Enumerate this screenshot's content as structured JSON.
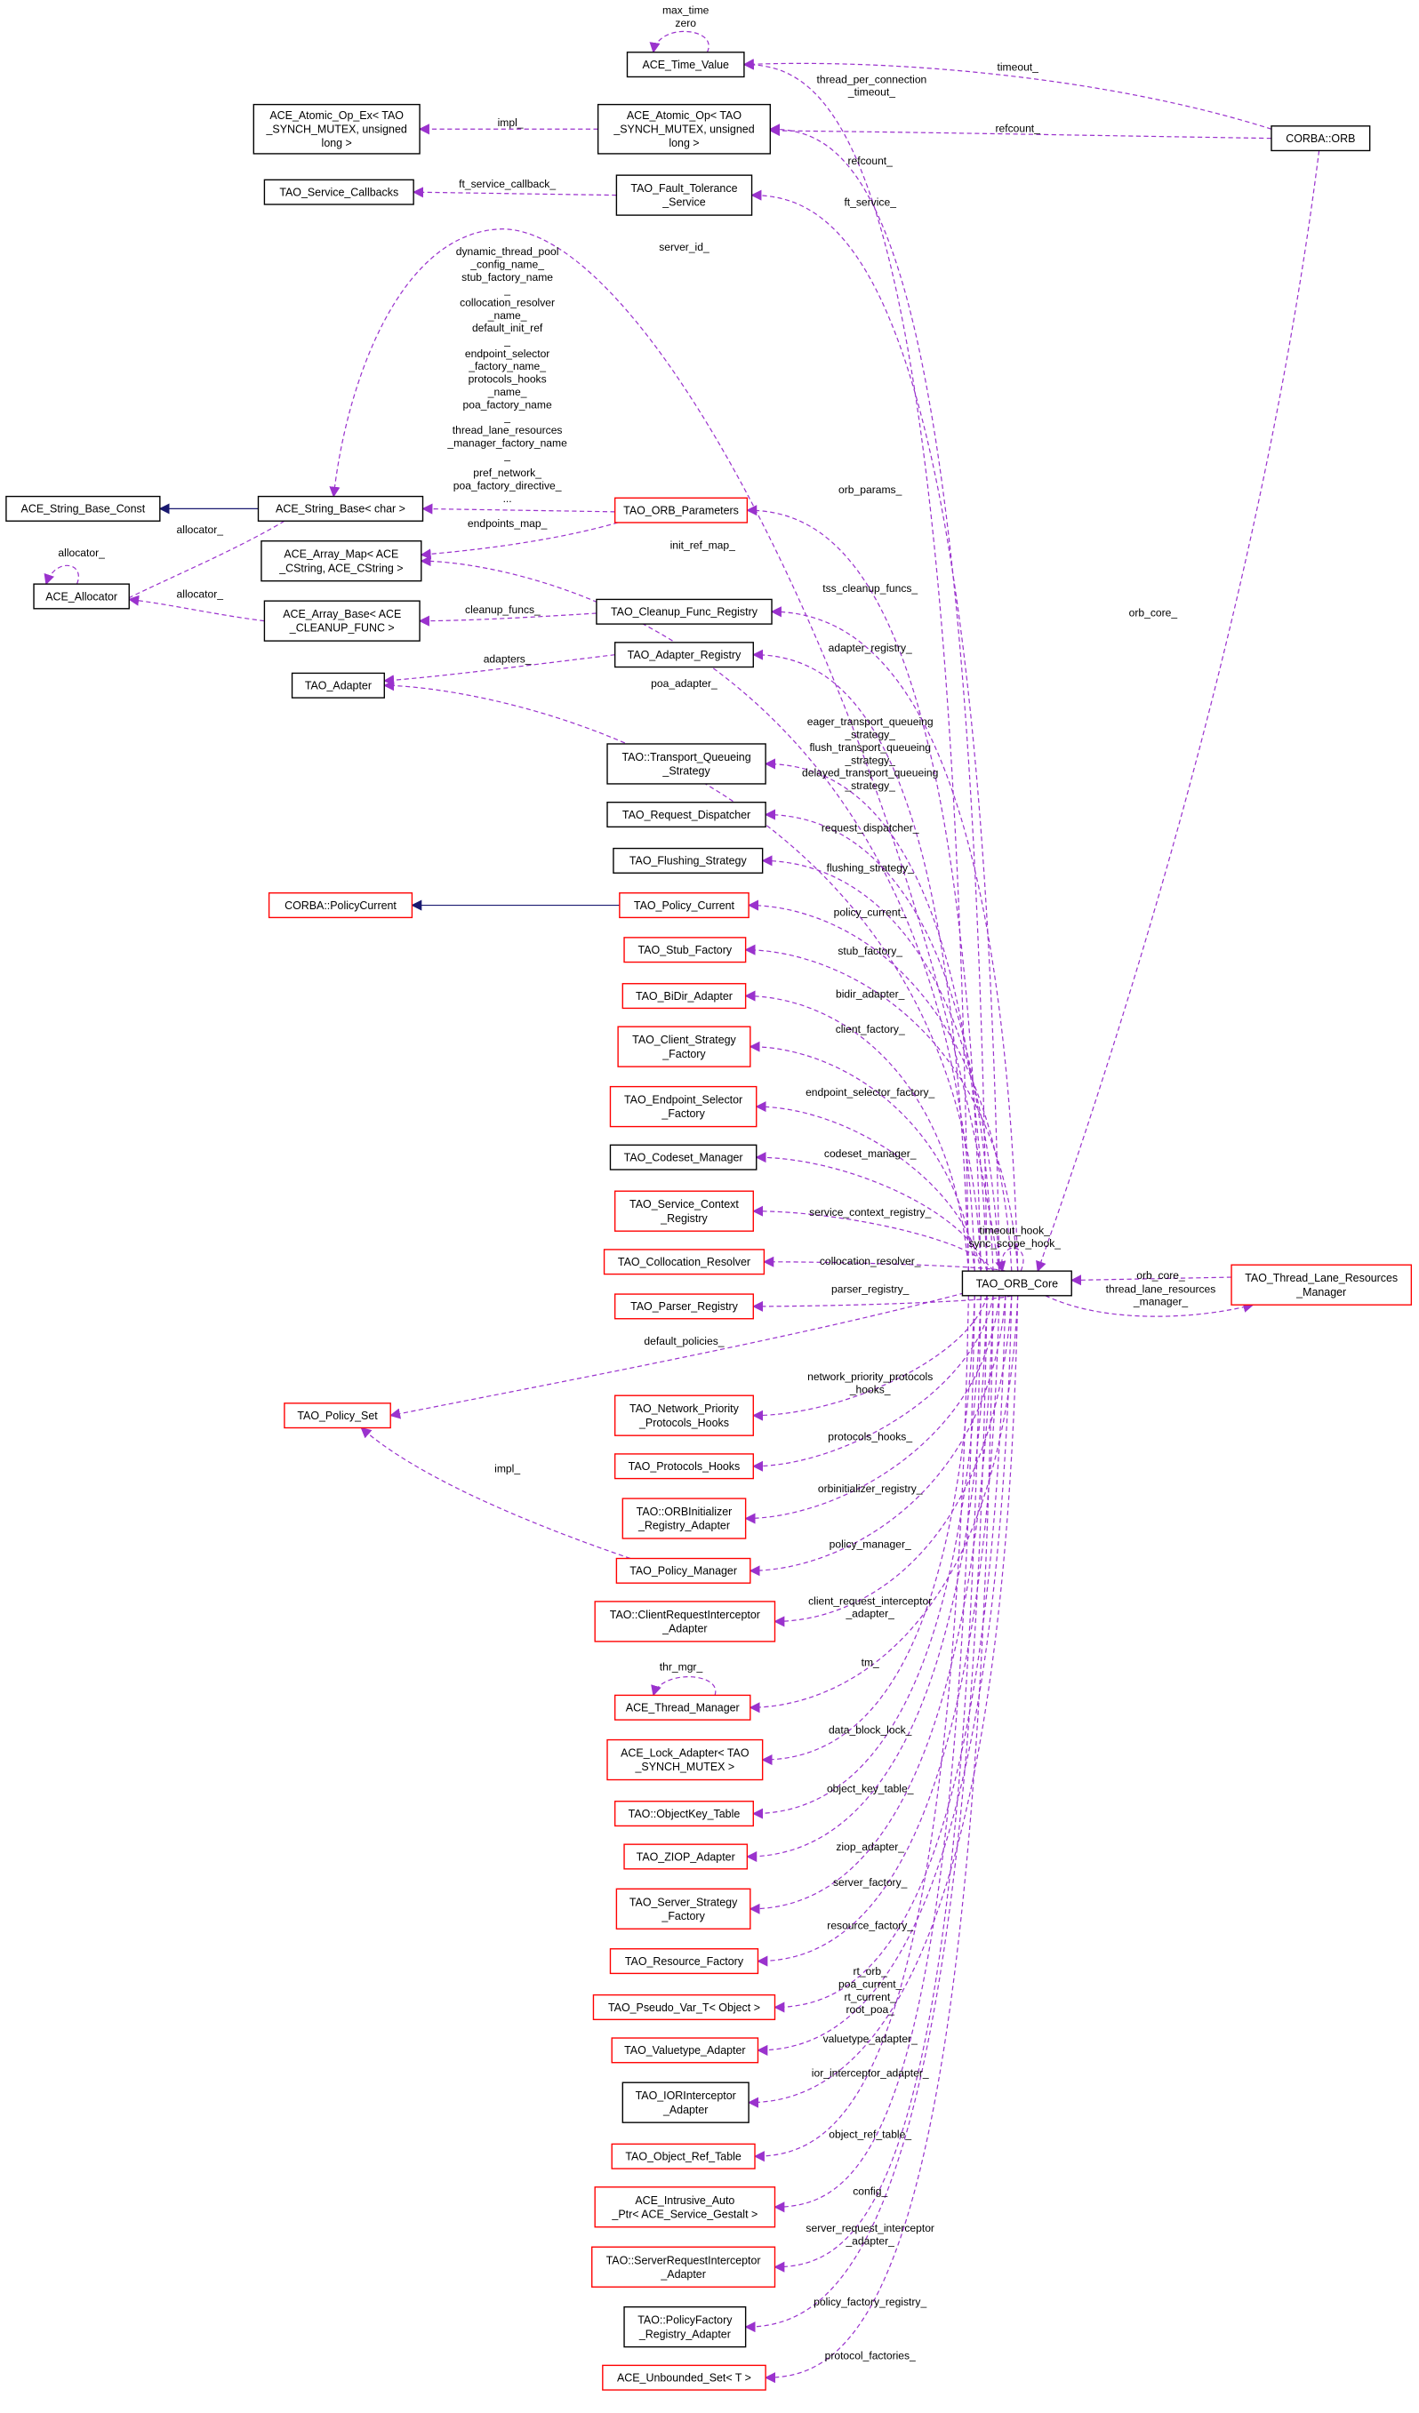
{
  "colors": {
    "member_edge": "#9a32cd",
    "inherit_edge": "#191970",
    "documented_border": "#000000",
    "undocumented_border": "#ff0000",
    "focus_fill": "#bfbfbf"
  },
  "nodes": [
    {
      "id": "tv",
      "lines": [
        "ACE_Time_Value"
      ],
      "style": "black"
    },
    {
      "id": "aoex",
      "lines": [
        "ACE_Atomic_Op_Ex< TAO",
        "_SYNCH_MUTEX, unsigned",
        "long >"
      ],
      "style": "black"
    },
    {
      "id": "ao",
      "lines": [
        "ACE_Atomic_Op< TAO",
        "_SYNCH_MUTEX, unsigned",
        "long >"
      ],
      "style": "black"
    },
    {
      "id": "orb",
      "lines": [
        "CORBA::ORB"
      ],
      "style": "focus"
    },
    {
      "id": "sc",
      "lines": [
        "TAO_Service_Callbacks"
      ],
      "style": "black"
    },
    {
      "id": "ft",
      "lines": [
        "TAO_Fault_Tolerance",
        "_Service"
      ],
      "style": "black"
    },
    {
      "id": "sbc",
      "lines": [
        "ACE_String_Base_Const"
      ],
      "style": "black"
    },
    {
      "id": "sb",
      "lines": [
        "ACE_String_Base< char >"
      ],
      "style": "black"
    },
    {
      "id": "op",
      "lines": [
        "TAO_ORB_Parameters"
      ],
      "style": "red"
    },
    {
      "id": "am",
      "lines": [
        "ACE_Array_Map< ACE",
        "_CString, ACE_CString >"
      ],
      "style": "black"
    },
    {
      "id": "al",
      "lines": [
        "ACE_Allocator"
      ],
      "style": "black"
    },
    {
      "id": "ab",
      "lines": [
        "ACE_Array_Base< ACE",
        "_CLEANUP_FUNC >"
      ],
      "style": "black"
    },
    {
      "id": "cr",
      "lines": [
        "TAO_Cleanup_Func_Registry"
      ],
      "style": "black"
    },
    {
      "id": "ar",
      "lines": [
        "TAO_Adapter_Registry"
      ],
      "style": "black"
    },
    {
      "id": "ad",
      "lines": [
        "TAO_Adapter"
      ],
      "style": "black"
    },
    {
      "id": "tq",
      "lines": [
        "TAO::Transport_Queueing",
        "_Strategy"
      ],
      "style": "black"
    },
    {
      "id": "rd",
      "lines": [
        "TAO_Request_Dispatcher"
      ],
      "style": "black"
    },
    {
      "id": "fs",
      "lines": [
        "TAO_Flushing_Strategy"
      ],
      "style": "black"
    },
    {
      "id": "cpc",
      "lines": [
        "CORBA::PolicyCurrent"
      ],
      "style": "red"
    },
    {
      "id": "pc",
      "lines": [
        "TAO_Policy_Current"
      ],
      "style": "red"
    },
    {
      "id": "sf",
      "lines": [
        "TAO_Stub_Factory"
      ],
      "style": "red"
    },
    {
      "id": "bd",
      "lines": [
        "TAO_BiDir_Adapter"
      ],
      "style": "red"
    },
    {
      "id": "cs",
      "lines": [
        "TAO_Client_Strategy",
        "_Factory"
      ],
      "style": "red"
    },
    {
      "id": "es",
      "lines": [
        "TAO_Endpoint_Selector",
        "_Factory"
      ],
      "style": "red"
    },
    {
      "id": "cm",
      "lines": [
        "TAO_Codeset_Manager"
      ],
      "style": "black"
    },
    {
      "id": "scr",
      "lines": [
        "TAO_Service_Context",
        "_Registry"
      ],
      "style": "red"
    },
    {
      "id": "col",
      "lines": [
        "TAO_Collocation_Resolver"
      ],
      "style": "red"
    },
    {
      "id": "pr",
      "lines": [
        "TAO_Parser_Registry"
      ],
      "style": "red"
    },
    {
      "id": "core",
      "lines": [
        "TAO_ORB_Core"
      ],
      "style": "black"
    },
    {
      "id": "tlr",
      "lines": [
        "TAO_Thread_Lane_Resources",
        "_Manager"
      ],
      "style": "red"
    },
    {
      "id": "ps",
      "lines": [
        "TAO_Policy_Set"
      ],
      "style": "red"
    },
    {
      "id": "np",
      "lines": [
        "TAO_Network_Priority",
        "_Protocols_Hooks"
      ],
      "style": "red"
    },
    {
      "id": "ph",
      "lines": [
        "TAO_Protocols_Hooks"
      ],
      "style": "red"
    },
    {
      "id": "oi",
      "lines": [
        "TAO::ORBInitializer",
        "_Registry_Adapter"
      ],
      "style": "red"
    },
    {
      "id": "pm",
      "lines": [
        "TAO_Policy_Manager"
      ],
      "style": "red"
    },
    {
      "id": "cri",
      "lines": [
        "TAO::ClientRequestInterceptor",
        "_Adapter"
      ],
      "style": "red"
    },
    {
      "id": "tm",
      "lines": [
        "ACE_Thread_Manager"
      ],
      "style": "red"
    },
    {
      "id": "la",
      "lines": [
        "ACE_Lock_Adapter< TAO",
        "_SYNCH_MUTEX >"
      ],
      "style": "red"
    },
    {
      "id": "ok",
      "lines": [
        "TAO::ObjectKey_Table"
      ],
      "style": "red"
    },
    {
      "id": "zi",
      "lines": [
        "TAO_ZIOP_Adapter"
      ],
      "style": "red"
    },
    {
      "id": "ss",
      "lines": [
        "TAO_Server_Strategy",
        "_Factory"
      ],
      "style": "red"
    },
    {
      "id": "rf",
      "lines": [
        "TAO_Resource_Factory"
      ],
      "style": "red"
    },
    {
      "id": "pv",
      "lines": [
        "TAO_Pseudo_Var_T< Object >"
      ],
      "style": "red"
    },
    {
      "id": "va",
      "lines": [
        "TAO_Valuetype_Adapter"
      ],
      "style": "red"
    },
    {
      "id": "ior",
      "lines": [
        "TAO_IORInterceptor",
        "_Adapter"
      ],
      "style": "black"
    },
    {
      "id": "ort",
      "lines": [
        "TAO_Object_Ref_Table"
      ],
      "style": "red"
    },
    {
      "id": "ia",
      "lines": [
        "ACE_Intrusive_Auto",
        "_Ptr< ACE_Service_Gestalt >"
      ],
      "style": "red"
    },
    {
      "id": "sri",
      "lines": [
        "TAO::ServerRequestInterceptor",
        "_Adapter"
      ],
      "style": "red"
    },
    {
      "id": "pf",
      "lines": [
        "TAO::PolicyFactory",
        "_Registry_Adapter"
      ],
      "style": "black"
    },
    {
      "id": "us",
      "lines": [
        "ACE_Unbounded_Set< T >"
      ],
      "style": "red"
    }
  ],
  "edges": [
    {
      "from": "core",
      "to": "tv",
      "kind": "member",
      "labels": [
        "thread_per_connection",
        "_timeout_"
      ]
    },
    {
      "from": "orb",
      "to": "tv",
      "kind": "member",
      "labels": [
        "timeout_"
      ]
    },
    {
      "from": "orb",
      "to": "ao",
      "kind": "member",
      "labels": [
        "refcount_"
      ]
    },
    {
      "from": "core",
      "to": "ao",
      "kind": "member",
      "labels": [
        "refcount_"
      ]
    },
    {
      "from": "ao",
      "to": "aoex",
      "kind": "member",
      "labels": [
        "impl_"
      ]
    },
    {
      "from": "core",
      "to": "ft",
      "kind": "member",
      "labels": [
        "ft_service_"
      ]
    },
    {
      "from": "ft",
      "to": "sc",
      "kind": "member",
      "labels": [
        "ft_service_callback_"
      ]
    },
    {
      "from": "core",
      "to": "sb",
      "kind": "member",
      "labels": [
        "dynamic_thread_pool",
        "_config_name_",
        "stub_factory_name",
        "_",
        "collocation_resolver",
        "_name_",
        "default_init_ref",
        "_",
        "endpoint_selector",
        "_factory_name_",
        "protocols_hooks",
        "_name_",
        "poa_factory_name",
        "_",
        "thread_lane_resources",
        "_manager_factory_name",
        "_"
      ],
      "labels_alt": [
        "server_id_"
      ]
    },
    {
      "from": "op",
      "to": "sb",
      "kind": "member",
      "labels": [
        "pref_network_",
        "poa_factory_directive_",
        "..."
      ]
    },
    {
      "from": "op",
      "to": "am",
      "kind": "member",
      "labels": [
        "endpoints_map_"
      ]
    },
    {
      "from": "core",
      "to": "am",
      "kind": "member",
      "labels": [
        "init_ref_map_"
      ]
    },
    {
      "from": "core",
      "to": "op",
      "kind": "member",
      "labels": [
        "orb_params_"
      ]
    },
    {
      "from": "sb",
      "to": "sbc",
      "kind": "inherit",
      "labels": []
    },
    {
      "from": "sb",
      "to": "al",
      "kind": "member",
      "labels": [
        "allocator_"
      ]
    },
    {
      "from": "al",
      "to": "al",
      "kind": "member",
      "labels": [
        "allocator_"
      ]
    },
    {
      "from": "ab",
      "to": "al",
      "kind": "member",
      "labels": [
        "allocator_"
      ]
    },
    {
      "from": "cr",
      "to": "ab",
      "kind": "member",
      "labels": [
        "cleanup_funcs_"
      ]
    },
    {
      "from": "core",
      "to": "cr",
      "kind": "member",
      "labels": [
        "tss_cleanup_funcs_"
      ]
    },
    {
      "from": "core",
      "to": "ar",
      "kind": "member",
      "labels": [
        "adapter_registry_"
      ]
    },
    {
      "from": "ar",
      "to": "ad",
      "kind": "member",
      "labels": [
        "adapters_"
      ]
    },
    {
      "from": "core",
      "to": "ad",
      "kind": "member",
      "labels": [
        "poa_adapter_"
      ]
    },
    {
      "from": "core",
      "to": "tq",
      "kind": "member",
      "labels": [
        "eager_transport_queueing",
        "_strategy_",
        "flush_transport_queueing",
        "_strategy_",
        "delayed_transport_queueing",
        "_strategy_"
      ]
    },
    {
      "from": "core",
      "to": "rd",
      "kind": "member",
      "labels": [
        "request_dispatcher_"
      ]
    },
    {
      "from": "core",
      "to": "fs",
      "kind": "member",
      "labels": [
        "flushing_strategy_"
      ]
    },
    {
      "from": "pc",
      "to": "cpc",
      "kind": "inherit",
      "labels": []
    },
    {
      "from": "core",
      "to": "pc",
      "kind": "member",
      "labels": [
        "policy_current_"
      ]
    },
    {
      "from": "core",
      "to": "sf",
      "kind": "member",
      "labels": [
        "stub_factory_"
      ]
    },
    {
      "from": "core",
      "to": "bd",
      "kind": "member",
      "labels": [
        "bidir_adapter_"
      ]
    },
    {
      "from": "core",
      "to": "cs",
      "kind": "member",
      "labels": [
        "client_factory_"
      ]
    },
    {
      "from": "core",
      "to": "es",
      "kind": "member",
      "labels": [
        "endpoint_selector_factory_"
      ]
    },
    {
      "from": "core",
      "to": "cm",
      "kind": "member",
      "labels": [
        "codeset_manager_"
      ]
    },
    {
      "from": "core",
      "to": "scr",
      "kind": "member",
      "labels": [
        "service_context_registry_"
      ]
    },
    {
      "from": "core",
      "to": "core",
      "kind": "member",
      "labels": [
        "timeout_hook_",
        "sync_scope_hook_"
      ]
    },
    {
      "from": "core",
      "to": "col",
      "kind": "member",
      "labels": [
        "collocation_resolver_"
      ]
    },
    {
      "from": "core",
      "to": "pr",
      "kind": "member",
      "labels": [
        "parser_registry_"
      ]
    },
    {
      "from": "tlr",
      "to": "core",
      "kind": "member",
      "labels": [
        "orb_core_"
      ]
    },
    {
      "from": "core",
      "to": "tlr",
      "kind": "member",
      "labels": [
        "thread_lane_resources",
        "_manager_"
      ]
    },
    {
      "from": "core",
      "to": "ps",
      "kind": "member",
      "labels": [
        "default_policies_"
      ]
    },
    {
      "from": "pm",
      "to": "ps",
      "kind": "member",
      "labels": [
        "impl_"
      ]
    },
    {
      "from": "core",
      "to": "np",
      "kind": "member",
      "labels": [
        "network_priority_protocols",
        "_hooks_"
      ]
    },
    {
      "from": "core",
      "to": "ph",
      "kind": "member",
      "labels": [
        "protocols_hooks_"
      ]
    },
    {
      "from": "core",
      "to": "oi",
      "kind": "member",
      "labels": [
        "orbinitializer_registry_"
      ]
    },
    {
      "from": "core",
      "to": "pm",
      "kind": "member",
      "labels": [
        "policy_manager_"
      ]
    },
    {
      "from": "core",
      "to": "cri",
      "kind": "member",
      "labels": [
        "client_request_interceptor",
        "_adapter_"
      ]
    },
    {
      "from": "core",
      "to": "tm",
      "kind": "member",
      "labels": [
        "tm_"
      ]
    },
    {
      "from": "tm",
      "to": "tm",
      "kind": "member",
      "labels": [
        "thr_mgr_"
      ]
    },
    {
      "from": "core",
      "to": "la",
      "kind": "member",
      "labels": [
        "data_block_lock_"
      ]
    },
    {
      "from": "core",
      "to": "ok",
      "kind": "member",
      "labels": [
        "object_key_table_"
      ]
    },
    {
      "from": "core",
      "to": "zi",
      "kind": "member",
      "labels": [
        "ziop_adapter_"
      ]
    },
    {
      "from": "core",
      "to": "ss",
      "kind": "member",
      "labels": [
        "server_factory_"
      ]
    },
    {
      "from": "core",
      "to": "rf",
      "kind": "member",
      "labels": [
        "resource_factory_"
      ]
    },
    {
      "from": "core",
      "to": "pv",
      "kind": "member",
      "labels": [
        "rt_orb_",
        "poa_current_",
        "rt_current_",
        "root_poa_"
      ]
    },
    {
      "from": "core",
      "to": "va",
      "kind": "member",
      "labels": [
        "valuetype_adapter_"
      ]
    },
    {
      "from": "core",
      "to": "ior",
      "kind": "member",
      "labels": [
        "ior_interceptor_adapter_"
      ]
    },
    {
      "from": "core",
      "to": "ort",
      "kind": "member",
      "labels": [
        "object_ref_table_"
      ]
    },
    {
      "from": "core",
      "to": "ia",
      "kind": "member",
      "labels": [
        "config_"
      ]
    },
    {
      "from": "core",
      "to": "sri",
      "kind": "member",
      "labels": [
        "server_request_interceptor",
        "_adapter_"
      ]
    },
    {
      "from": "core",
      "to": "pf",
      "kind": "member",
      "labels": [
        "policy_factory_registry_"
      ]
    },
    {
      "from": "core",
      "to": "us",
      "kind": "member",
      "labels": [
        "protocol_factories_"
      ]
    },
    {
      "from": "orb",
      "to": "core",
      "kind": "member",
      "labels": [
        "orb_core_"
      ]
    },
    {
      "from": "tv",
      "to": "tv",
      "kind": "member",
      "labels": [
        "max_time",
        "zero"
      ]
    }
  ]
}
